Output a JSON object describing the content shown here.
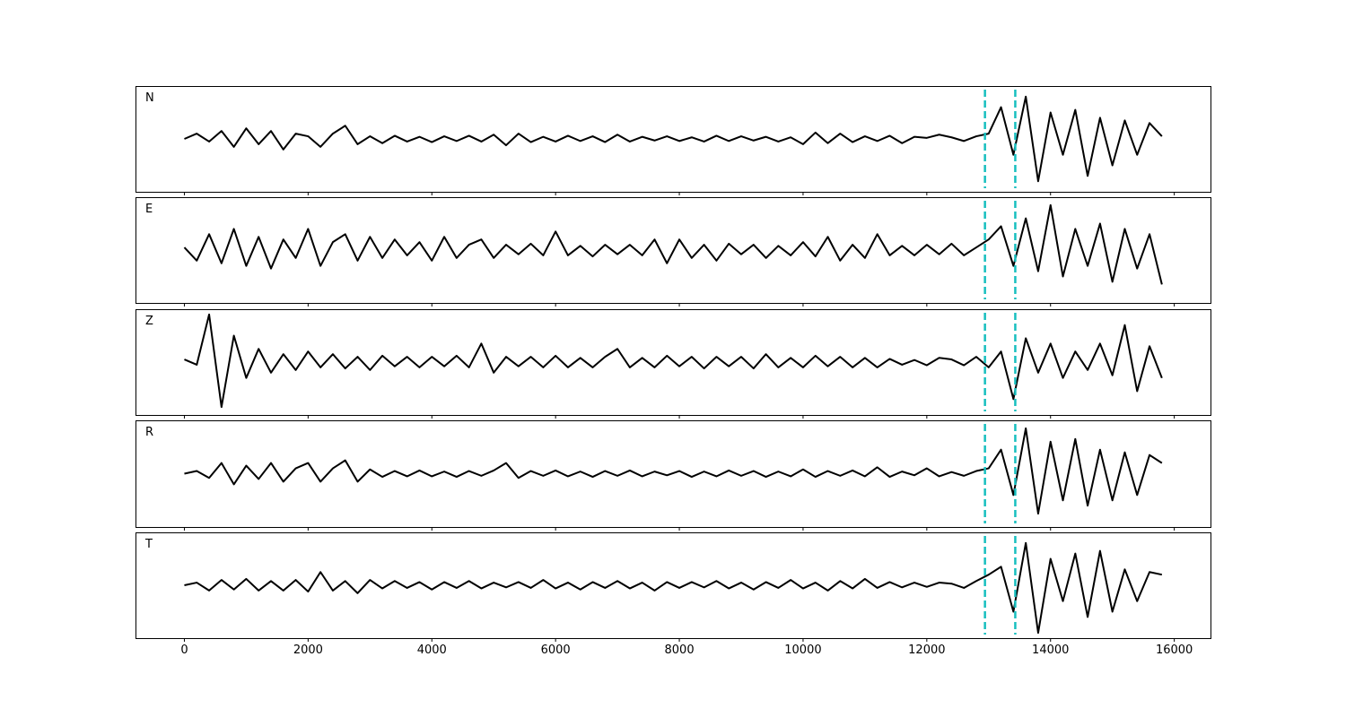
{
  "chart_data": [
    {
      "type": "line",
      "title": "N",
      "color": "#000000",
      "xlim": [
        -790,
        16600
      ],
      "ylim": [
        -1,
        1
      ],
      "vlines": [
        12940,
        13430
      ],
      "vline_color": "#17bfbf",
      "x": [
        0,
        200,
        400,
        600,
        800,
        1000,
        1200,
        1400,
        1600,
        1800,
        2000,
        2200,
        2400,
        2600,
        2800,
        3000,
        3200,
        3400,
        3600,
        3800,
        4000,
        4200,
        4400,
        4600,
        4800,
        5000,
        5200,
        5400,
        5600,
        5800,
        6000,
        6200,
        6400,
        6600,
        6800,
        7000,
        7200,
        7400,
        7600,
        7800,
        8000,
        8200,
        8400,
        8600,
        8800,
        9000,
        9200,
        9400,
        9600,
        9800,
        10000,
        10200,
        10400,
        10600,
        10800,
        11000,
        11200,
        11400,
        11600,
        11800,
        12000,
        12200,
        12400,
        12600,
        12800,
        13000,
        13200,
        13400,
        13600,
        13800,
        14000,
        14200,
        14400,
        14600,
        14800,
        15000,
        15200,
        15400,
        15600,
        15800
      ],
      "values": [
        0,
        0.1,
        -0.05,
        0.15,
        -0.15,
        0.2,
        -0.1,
        0.15,
        -0.2,
        0.1,
        0.05,
        -0.15,
        0.1,
        0.25,
        -0.1,
        0.05,
        -0.08,
        0.06,
        -0.05,
        0.04,
        -0.06,
        0.05,
        -0.04,
        0.06,
        -0.05,
        0.08,
        -0.12,
        0.1,
        -0.06,
        0.04,
        -0.05,
        0.06,
        -0.04,
        0.05,
        -0.06,
        0.08,
        -0.05,
        0.04,
        -0.03,
        0.05,
        -0.04,
        0.03,
        -0.05,
        0.06,
        -0.04,
        0.05,
        -0.03,
        0.04,
        -0.05,
        0.03,
        -0.1,
        0.12,
        -0.08,
        0.1,
        -0.06,
        0.05,
        -0.04,
        0.06,
        -0.08,
        0.04,
        0.02,
        0.08,
        0.03,
        -0.04,
        0.05,
        0.1,
        0.6,
        -0.3,
        0.8,
        -0.8,
        0.5,
        -0.3,
        0.55,
        -0.7,
        0.4,
        -0.5,
        0.35,
        -0.3,
        0.3,
        0.05
      ]
    },
    {
      "type": "line",
      "title": "E",
      "color": "#000000",
      "xlim": [
        -790,
        16600
      ],
      "ylim": [
        -1,
        1
      ],
      "vlines": [
        12940,
        13430
      ],
      "vline_color": "#17bfbf",
      "x": [
        0,
        200,
        400,
        600,
        800,
        1000,
        1200,
        1400,
        1600,
        1800,
        2000,
        2200,
        2400,
        2600,
        2800,
        3000,
        3200,
        3400,
        3600,
        3800,
        4000,
        4200,
        4400,
        4600,
        4800,
        5000,
        5200,
        5400,
        5600,
        5800,
        6000,
        6200,
        6400,
        6600,
        6800,
        7000,
        7200,
        7400,
        7600,
        7800,
        8000,
        8200,
        8400,
        8600,
        8800,
        9000,
        9200,
        9400,
        9600,
        9800,
        10000,
        10200,
        10400,
        10600,
        10800,
        11000,
        11200,
        11400,
        11600,
        11800,
        12000,
        12200,
        12400,
        12600,
        12800,
        13000,
        13200,
        13400,
        13600,
        13800,
        14000,
        14200,
        14400,
        14600,
        14800,
        15000,
        15200,
        15400,
        15600,
        15800
      ],
      "values": [
        0.05,
        -0.2,
        0.3,
        -0.25,
        0.4,
        -0.3,
        0.25,
        -0.35,
        0.2,
        -0.15,
        0.4,
        -0.3,
        0.15,
        0.3,
        -0.2,
        0.25,
        -0.15,
        0.2,
        -0.1,
        0.15,
        -0.2,
        0.25,
        -0.15,
        0.1,
        0.2,
        -0.15,
        0.1,
        -0.08,
        0.12,
        -0.1,
        0.35,
        -0.1,
        0.08,
        -0.12,
        0.1,
        -0.08,
        0.1,
        -0.1,
        0.2,
        -0.25,
        0.2,
        -0.15,
        0.1,
        -0.2,
        0.12,
        -0.08,
        0.1,
        -0.15,
        0.08,
        -0.1,
        0.15,
        -0.12,
        0.25,
        -0.2,
        0.1,
        -0.15,
        0.3,
        -0.1,
        0.08,
        -0.1,
        0.1,
        -0.08,
        0.12,
        -0.1,
        0.05,
        0.2,
        0.45,
        -0.3,
        0.6,
        -0.4,
        0.85,
        -0.5,
        0.4,
        -0.3,
        0.5,
        -0.6,
        0.4,
        -0.35,
        0.3,
        -0.65
      ]
    },
    {
      "type": "line",
      "title": "Z",
      "color": "#000000",
      "xlim": [
        -790,
        16600
      ],
      "ylim": [
        -1,
        1
      ],
      "vlines": [
        12940,
        13430
      ],
      "vline_color": "#17bfbf",
      "x": [
        0,
        200,
        400,
        600,
        800,
        1000,
        1200,
        1400,
        1600,
        1800,
        2000,
        2200,
        2400,
        2600,
        2800,
        3000,
        3200,
        3400,
        3600,
        3800,
        4000,
        4200,
        4400,
        4600,
        4800,
        5000,
        5200,
        5400,
        5600,
        5800,
        6000,
        6200,
        6400,
        6600,
        6800,
        7000,
        7200,
        7400,
        7600,
        7800,
        8000,
        8200,
        8400,
        8600,
        8800,
        9000,
        9200,
        9400,
        9600,
        9800,
        10000,
        10200,
        10400,
        10600,
        10800,
        11000,
        11200,
        11400,
        11600,
        11800,
        12000,
        12200,
        12400,
        12600,
        12800,
        13000,
        13200,
        13400,
        13600,
        13800,
        14000,
        14200,
        14400,
        14600,
        14800,
        15000,
        15200,
        15400,
        15600,
        15800
      ],
      "values": [
        0.05,
        -0.05,
        0.9,
        -0.85,
        0.5,
        -0.3,
        0.25,
        -0.2,
        0.15,
        -0.15,
        0.2,
        -0.1,
        0.15,
        -0.12,
        0.1,
        -0.15,
        0.12,
        -0.08,
        0.1,
        -0.1,
        0.1,
        -0.08,
        0.12,
        -0.1,
        0.35,
        -0.2,
        0.1,
        -0.08,
        0.1,
        -0.1,
        0.12,
        -0.1,
        0.08,
        -0.1,
        0.1,
        0.25,
        -0.1,
        0.08,
        -0.1,
        0.12,
        -0.08,
        0.1,
        -0.12,
        0.1,
        -0.08,
        0.1,
        -0.12,
        0.15,
        -0.1,
        0.08,
        -0.1,
        0.12,
        -0.08,
        0.1,
        -0.1,
        0.08,
        -0.1,
        0.06,
        -0.05,
        0.04,
        -0.06,
        0.08,
        0.05,
        -0.06,
        0.1,
        -0.1,
        0.2,
        -0.7,
        0.45,
        -0.2,
        0.35,
        -0.3,
        0.2,
        -0.15,
        0.35,
        -0.25,
        0.7,
        -0.55,
        0.3,
        -0.3
      ]
    },
    {
      "type": "line",
      "title": "R",
      "color": "#000000",
      "xlim": [
        -790,
        16600
      ],
      "ylim": [
        -1,
        1
      ],
      "vlines": [
        12940,
        13430
      ],
      "vline_color": "#17bfbf",
      "x": [
        0,
        200,
        400,
        600,
        800,
        1000,
        1200,
        1400,
        1600,
        1800,
        2000,
        2200,
        2400,
        2600,
        2800,
        3000,
        3200,
        3400,
        3600,
        3800,
        4000,
        4200,
        4400,
        4600,
        4800,
        5000,
        5200,
        5400,
        5600,
        5800,
        6000,
        6200,
        6400,
        6600,
        6800,
        7000,
        7200,
        7400,
        7600,
        7800,
        8000,
        8200,
        8400,
        8600,
        8800,
        9000,
        9200,
        9400,
        9600,
        9800,
        10000,
        10200,
        10400,
        10600,
        10800,
        11000,
        11200,
        11400,
        11600,
        11800,
        12000,
        12200,
        12400,
        12600,
        12800,
        13000,
        13200,
        13400,
        13600,
        13800,
        14000,
        14200,
        14400,
        14600,
        14800,
        15000,
        15200,
        15400,
        15600,
        15800
      ],
      "values": [
        0,
        0.05,
        -0.08,
        0.2,
        -0.2,
        0.15,
        -0.1,
        0.2,
        -0.15,
        0.1,
        0.2,
        -0.15,
        0.1,
        0.25,
        -0.15,
        0.08,
        -0.06,
        0.05,
        -0.05,
        0.06,
        -0.05,
        0.04,
        -0.06,
        0.05,
        -0.04,
        0.06,
        0.2,
        -0.08,
        0.05,
        -0.04,
        0.06,
        -0.05,
        0.04,
        -0.06,
        0.05,
        -0.04,
        0.06,
        -0.05,
        0.04,
        -0.03,
        0.05,
        -0.06,
        0.04,
        -0.05,
        0.06,
        -0.04,
        0.05,
        -0.06,
        0.04,
        -0.05,
        0.08,
        -0.06,
        0.05,
        -0.04,
        0.06,
        -0.05,
        0.12,
        -0.06,
        0.04,
        -0.03,
        0.1,
        -0.05,
        0.03,
        -0.04,
        0.05,
        0.1,
        0.45,
        -0.4,
        0.85,
        -0.75,
        0.6,
        -0.5,
        0.65,
        -0.6,
        0.45,
        -0.5,
        0.4,
        -0.4,
        0.35,
        0.2
      ]
    },
    {
      "type": "line",
      "title": "T",
      "color": "#000000",
      "xlim": [
        -790,
        16600
      ],
      "ylim": [
        -1,
        1
      ],
      "vlines": [
        12940,
        13430
      ],
      "vline_color": "#17bfbf",
      "xticks": [
        0,
        2000,
        4000,
        6000,
        8000,
        10000,
        12000,
        14000,
        16000
      ],
      "x": [
        0,
        200,
        400,
        600,
        800,
        1000,
        1200,
        1400,
        1600,
        1800,
        2000,
        2200,
        2400,
        2600,
        2800,
        3000,
        3200,
        3400,
        3600,
        3800,
        4000,
        4200,
        4400,
        4600,
        4800,
        5000,
        5200,
        5400,
        5600,
        5800,
        6000,
        6200,
        6400,
        6600,
        6800,
        7000,
        7200,
        7400,
        7600,
        7800,
        8000,
        8200,
        8400,
        8600,
        8800,
        9000,
        9200,
        9400,
        9600,
        9800,
        10000,
        10200,
        10400,
        10600,
        10800,
        11000,
        11200,
        11400,
        11600,
        11800,
        12000,
        12200,
        12400,
        12600,
        12800,
        13000,
        13200,
        13400,
        13600,
        13800,
        14000,
        14200,
        14400,
        14600,
        14800,
        15000,
        15200,
        15400,
        15600,
        15800
      ],
      "values": [
        0,
        0.05,
        -0.1,
        0.1,
        -0.08,
        0.12,
        -0.1,
        0.08,
        -0.1,
        0.1,
        -0.12,
        0.25,
        -0.1,
        0.08,
        -0.15,
        0.1,
        -0.06,
        0.08,
        -0.05,
        0.06,
        -0.08,
        0.06,
        -0.05,
        0.08,
        -0.06,
        0.05,
        -0.04,
        0.06,
        -0.05,
        0.1,
        -0.06,
        0.05,
        -0.08,
        0.06,
        -0.05,
        0.08,
        -0.06,
        0.05,
        -0.1,
        0.06,
        -0.05,
        0.06,
        -0.04,
        0.08,
        -0.06,
        0.05,
        -0.08,
        0.06,
        -0.05,
        0.1,
        -0.06,
        0.05,
        -0.1,
        0.08,
        -0.06,
        0.12,
        -0.05,
        0.06,
        -0.04,
        0.05,
        -0.03,
        0.05,
        0.03,
        -0.05,
        0.08,
        0.2,
        0.35,
        -0.5,
        0.8,
        -0.9,
        0.5,
        -0.3,
        0.6,
        -0.6,
        0.65,
        -0.5,
        0.3,
        -0.3,
        0.25,
        0.2
      ]
    }
  ]
}
